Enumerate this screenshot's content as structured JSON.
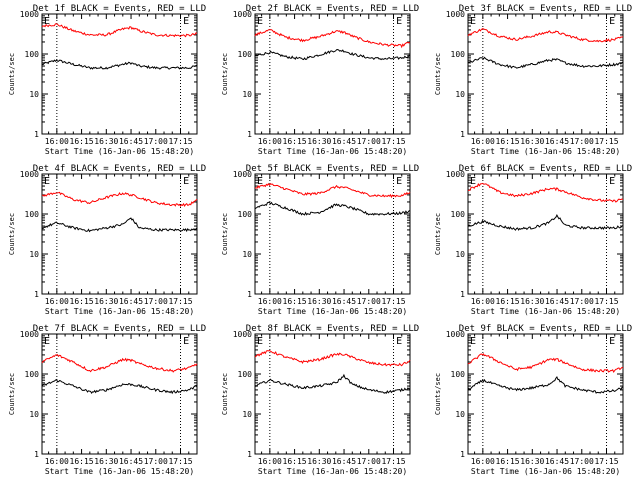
{
  "chart_data": {
    "type": "line",
    "y_scale": "log",
    "ylim": [
      1,
      1000
    ],
    "xlim_minutes": [
      "15:51",
      "17:25"
    ],
    "ylabel": "Counts/sec",
    "xlabel": "Start Time (16-Jan-06 15:48:20)",
    "x_tick_labels": [
      "16:00",
      "16:15",
      "16:30",
      "16:45",
      "17:00",
      "17:15"
    ],
    "x_tick_times": [
      "16:00",
      "16:15",
      "16:30",
      "16:45",
      "17:00",
      "17:15"
    ],
    "y_tick_labels": [
      "1",
      "10",
      "100",
      "1000"
    ],
    "y_tick_values": [
      1,
      10,
      100,
      1000
    ],
    "event_marker_label": "E",
    "event_marker_times": [
      "15:51",
      "17:16"
    ],
    "vertical_dotted_times": [
      "16:00",
      "17:15"
    ],
    "colors": {
      "events": "#000000",
      "lld": "#ff0000",
      "axes": "#000000"
    },
    "x_times": [
      "15:51",
      "16:00",
      "16:10",
      "16:20",
      "16:30",
      "16:40",
      "16:45",
      "16:50",
      "17:00",
      "17:10",
      "17:20",
      "17:25"
    ],
    "panels": [
      {
        "title": "Det 1f BLACK = Events, RED = LLD",
        "series": [
          {
            "name": "Events",
            "values": [
              55,
              70,
              55,
              45,
              45,
              55,
              60,
              50,
              45,
              45,
              45,
              50
            ]
          },
          {
            "name": "LLD",
            "values": [
              500,
              550,
              380,
              300,
              300,
              420,
              460,
              380,
              300,
              290,
              290,
              320
            ]
          }
        ]
      },
      {
        "title": "Det 2f BLACK = Events, RED = LLD",
        "series": [
          {
            "name": "Events",
            "values": [
              90,
              110,
              85,
              75,
              95,
              125,
              120,
              100,
              80,
              75,
              80,
              90
            ]
          },
          {
            "name": "LLD",
            "values": [
              300,
              400,
              260,
              220,
              270,
              370,
              350,
              280,
              200,
              170,
              160,
              200
            ]
          }
        ]
      },
      {
        "title": "Det 3f BLACK = Events, RED = LLD",
        "series": [
          {
            "name": "Events",
            "values": [
              60,
              80,
              55,
              45,
              55,
              70,
              72,
              60,
              50,
              50,
              55,
              60
            ]
          },
          {
            "name": "LLD",
            "values": [
              300,
              420,
              280,
              230,
              280,
              360,
              350,
              300,
              230,
              210,
              230,
              260
            ]
          }
        ]
      },
      {
        "title": "Det 4f BLACK = Events, RED = LLD",
        "series": [
          {
            "name": "Events",
            "values": [
              45,
              60,
              45,
              38,
              45,
              55,
              80,
              45,
              40,
              40,
              40,
              45
            ]
          },
          {
            "name": "LLD",
            "values": [
              280,
              350,
              230,
              190,
              260,
              330,
              300,
              260,
              190,
              170,
              170,
              220
            ]
          }
        ]
      },
      {
        "title": "Det 5f BLACK = Events, RED = LLD",
        "series": [
          {
            "name": "Events",
            "values": [
              140,
              190,
              140,
              100,
              110,
              170,
              160,
              140,
              100,
              100,
              105,
              120
            ]
          },
          {
            "name": "LLD",
            "values": [
              450,
              560,
              420,
              310,
              330,
              480,
              460,
              400,
              300,
              280,
              290,
              340
            ]
          }
        ]
      },
      {
        "title": "Det 6f BLACK = Events, RED = LLD",
        "series": [
          {
            "name": "Events",
            "values": [
              50,
              65,
              50,
              42,
              45,
              60,
              90,
              52,
              45,
              45,
              45,
              50
            ]
          },
          {
            "name": "LLD",
            "values": [
              400,
              600,
              350,
              280,
              330,
              430,
              420,
              360,
              260,
              220,
              210,
              240
            ]
          }
        ]
      },
      {
        "title": "Det 7f BLACK = Events, RED = LLD",
        "series": [
          {
            "name": "Events",
            "values": [
              50,
              70,
              50,
              35,
              40,
              55,
              55,
              50,
              40,
              35,
              40,
              50
            ]
          },
          {
            "name": "LLD",
            "values": [
              200,
              300,
              200,
              120,
              150,
              230,
              220,
              180,
              140,
              120,
              140,
              180
            ]
          }
        ]
      },
      {
        "title": "Det 8f BLACK = Events, RED = LLD",
        "series": [
          {
            "name": "Events",
            "values": [
              50,
              70,
              55,
              45,
              50,
              60,
              90,
              55,
              40,
              35,
              40,
              45
            ]
          },
          {
            "name": "LLD",
            "values": [
              280,
              380,
              260,
              200,
              230,
              310,
              310,
              260,
              190,
              170,
              170,
              210
            ]
          }
        ]
      },
      {
        "title": "Det 9f BLACK = Events, RED = LLD",
        "series": [
          {
            "name": "Events",
            "values": [
              40,
              70,
              50,
              40,
              45,
              55,
              80,
              50,
              40,
              35,
              38,
              45
            ]
          },
          {
            "name": "LLD",
            "values": [
              180,
              320,
              200,
              130,
              150,
              230,
              230,
              190,
              130,
              120,
              120,
              150
            ]
          }
        ]
      }
    ]
  }
}
